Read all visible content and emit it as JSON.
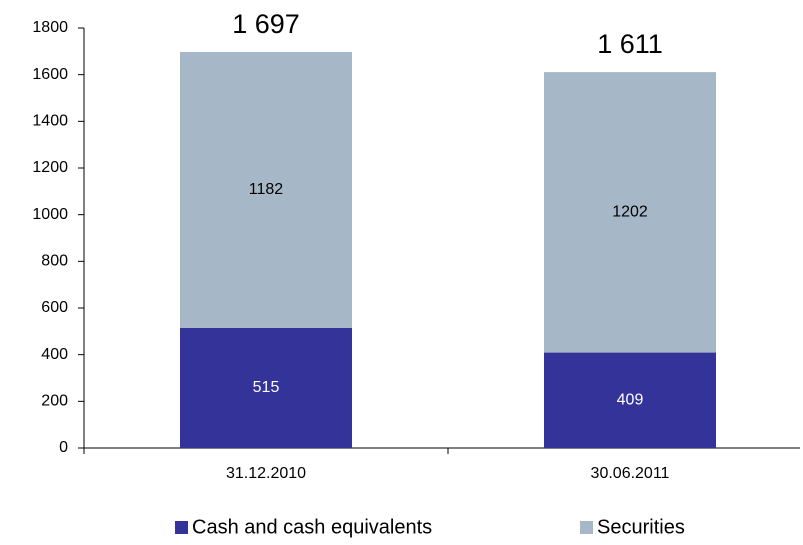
{
  "chart_data": {
    "type": "stacked_bar",
    "categories": [
      "31.12.2010",
      "30.06.2011"
    ],
    "series": [
      {
        "name": "Cash and cash equivalents",
        "color": "#333399",
        "values": [
          515,
          409
        ]
      },
      {
        "name": "Securities",
        "color": "#a6b8c8",
        "values": [
          1182,
          1202
        ]
      }
    ],
    "totals": [
      1697,
      1611
    ],
    "total_labels": [
      "1 697",
      "1 611"
    ],
    "ylim": [
      0,
      1800
    ],
    "yticks": [
      0,
      200,
      400,
      600,
      800,
      1000,
      1200,
      1400,
      1600,
      1800
    ],
    "legend": "bottom"
  }
}
